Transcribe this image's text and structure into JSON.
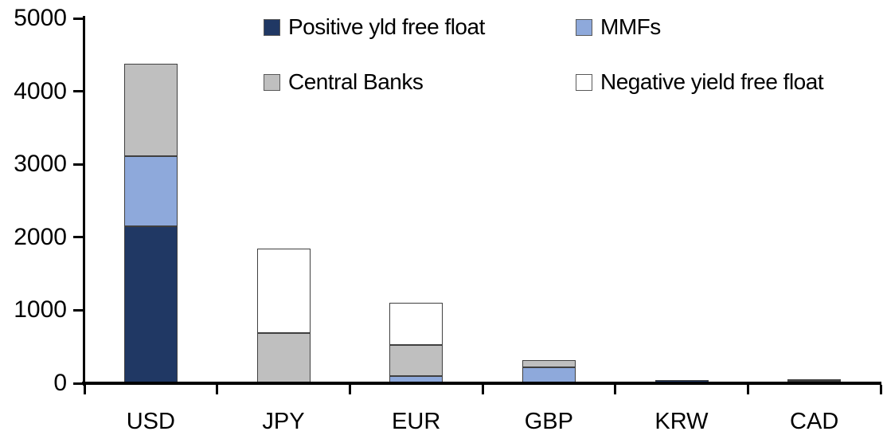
{
  "chart_data": {
    "type": "bar",
    "stacked": true,
    "title": "",
    "xlabel": "",
    "ylabel": "",
    "categories": [
      "USD",
      "JPY",
      "EUR",
      "GBP",
      "KRW",
      "CAD"
    ],
    "series": [
      {
        "name": "Positive yld free float",
        "color": "#203864",
        "values": [
          2150,
          0,
          0,
          0,
          45,
          30
        ]
      },
      {
        "name": "MMFs",
        "color": "#8EA9DB",
        "values": [
          960,
          0,
          100,
          220,
          0,
          5
        ]
      },
      {
        "name": "Central Banks",
        "color": "#BFBFBF",
        "values": [
          1270,
          690,
          425,
          100,
          0,
          25
        ]
      },
      {
        "name": "Negative yield free float",
        "color": "#FFFFFF",
        "values": [
          0,
          1150,
          575,
          0,
          0,
          0
        ]
      }
    ],
    "totals": [
      4380,
      1840,
      1100,
      320,
      45,
      60
    ],
    "ylim": [
      0,
      5000
    ],
    "yticks": [
      0,
      1000,
      2000,
      3000,
      4000,
      5000
    ],
    "grid": false,
    "legend_position": "top",
    "legend_layout": "two-rows-two-columns"
  },
  "colors": {
    "axis": "#000000",
    "text": "#000000",
    "segment_border": "#404040",
    "background": "#FFFFFF"
  }
}
